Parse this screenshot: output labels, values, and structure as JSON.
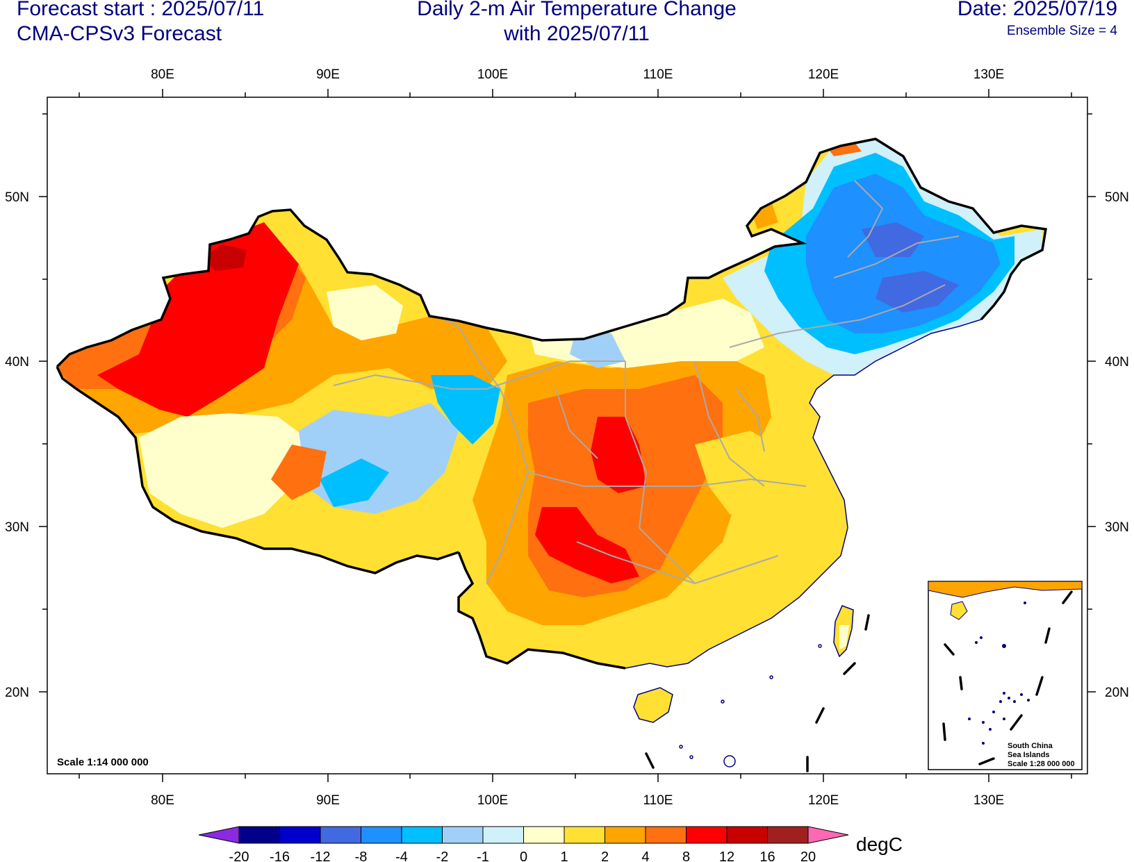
{
  "header": {
    "forecast_start": "Forecast start : 2025/07/11",
    "model": "CMA-CPSv3 Forecast",
    "title_line1": "Daily 2-m Air Temperature Change",
    "title_line2": "with 2025/07/11",
    "date": "Date: 2025/07/19",
    "ensemble": "Ensemble Size = 4"
  },
  "axes": {
    "lon_labels": [
      "80E",
      "90E",
      "100E",
      "110E",
      "120E",
      "130E"
    ],
    "lat_labels": [
      "50N",
      "40N",
      "30N",
      "20N"
    ]
  },
  "map": {
    "scale": "Scale 1:14 000 000",
    "inset_title": [
      "South China",
      "Sea Islands",
      "Scale 1:28 000 000"
    ]
  },
  "colorbar": {
    "unit": "degC",
    "ticks": [
      "-20",
      "-16",
      "-12",
      "-8",
      "-4",
      "-2",
      "-1",
      "0",
      "1",
      "2",
      "4",
      "8",
      "12",
      "16",
      "20"
    ],
    "colors": [
      "#8a2be2",
      "#00008b",
      "#0000cd",
      "#4169e1",
      "#1e90ff",
      "#00bfff",
      "#a0d0f8",
      "#d0f0fa",
      "#ffffcc",
      "#ffe033",
      "#ffa500",
      "#ff7010",
      "#ff0000",
      "#c80000",
      "#a02020",
      "#ff69b4"
    ]
  }
}
